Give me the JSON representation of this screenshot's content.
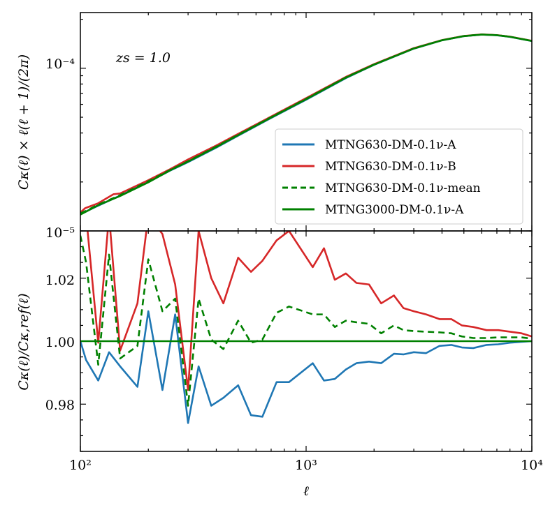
{
  "chart_data": [
    {
      "panel": "top",
      "type": "line",
      "xscale": "log",
      "yscale": "log",
      "xlim": [
        100,
        10000
      ],
      "ylim": [
        1e-05,
        0.00022
      ],
      "ylabel": "Cκ(ℓ) × ℓ(ℓ + 1)/(2π)",
      "annotation": "zs = 1.0",
      "ytick_labels": [
        {
          "value": 1e-05,
          "label": "10⁻⁵"
        },
        {
          "value": 0.0001,
          "label": "10⁻⁴"
        }
      ],
      "legend_position": "lower-right",
      "series": [
        {
          "name": "MTNG630-DM-0.1ν-A",
          "color": "#1f77b4",
          "style": "solid",
          "x": [
            100,
            120,
            150,
            200,
            250,
            300,
            400,
            500,
            700,
            1000,
            1500,
            2000,
            3000,
            4000,
            5000,
            6000,
            7000,
            8000,
            10000
          ],
          "y": [
            1.27e-05,
            1.43e-05,
            1.65e-05,
            2e-05,
            2.35e-05,
            2.65e-05,
            3.25e-05,
            3.85e-05,
            4.95e-05,
            6.4e-05,
            8.7e-05,
            0.000105,
            0.000132,
            0.0001485,
            0.0001575,
            0.000161,
            0.0001595,
            0.000156,
            0.000147
          ]
        },
        {
          "name": "MTNG630-DM-0.1ν-B",
          "color": "#d62728",
          "style": "solid",
          "x": [
            100,
            105,
            120,
            140,
            150,
            200,
            250,
            300,
            400,
            500,
            700,
            1000,
            1500,
            2000,
            3000,
            4000,
            5000,
            6000,
            7000,
            8000,
            10000
          ],
          "y": [
            1.3e-05,
            1.38e-05,
            1.48e-05,
            1.68e-05,
            1.7e-05,
            2.05e-05,
            2.4e-05,
            2.75e-05,
            3.35e-05,
            3.95e-05,
            5.05e-05,
            6.55e-05,
            8.85e-05,
            0.000106,
            0.000133,
            0.000149,
            0.000158,
            0.0001615,
            0.00016,
            0.0001565,
            0.0001475
          ]
        },
        {
          "name": "MTNG630-DM-0.1ν-mean",
          "color": "#008000",
          "style": "dashed",
          "x": [
            100,
            120,
            150,
            200,
            250,
            300,
            400,
            500,
            700,
            1000,
            1500,
            2000,
            3000,
            4000,
            5000,
            6000,
            7000,
            8000,
            10000
          ],
          "y": [
            1.28e-05,
            1.45e-05,
            1.66e-05,
            2.02e-05,
            2.37e-05,
            2.68e-05,
            3.3e-05,
            3.9e-05,
            5e-05,
            6.48e-05,
            8.78e-05,
            0.0001055,
            0.0001325,
            0.0001488,
            0.0001578,
            0.0001612,
            0.0001598,
            0.0001562,
            0.0001472
          ]
        },
        {
          "name": "MTNG3000-DM-0.1ν-A",
          "color": "#008000",
          "style": "solid",
          "x": [
            100,
            120,
            150,
            200,
            250,
            300,
            400,
            500,
            700,
            1000,
            1500,
            2000,
            3000,
            4000,
            5000,
            6000,
            7000,
            8000,
            10000
          ],
          "y": [
            1.26e-05,
            1.44e-05,
            1.64e-05,
            1.99e-05,
            2.36e-05,
            2.67e-05,
            3.28e-05,
            3.88e-05,
            4.98e-05,
            6.45e-05,
            8.75e-05,
            0.0001052,
            0.0001322,
            0.0001486,
            0.0001576,
            0.0001611,
            0.0001597,
            0.0001561,
            0.0001471
          ]
        }
      ]
    },
    {
      "panel": "bottom",
      "type": "line",
      "xscale": "log",
      "yscale": "linear",
      "xlim": [
        100,
        10000
      ],
      "ylim": [
        0.965,
        1.035
      ],
      "xlabel": "ℓ",
      "ylabel": "Cκ(ℓ)/Cκ,ref(ℓ)",
      "ytick_labels": [
        {
          "value": 0.98,
          "label": "0.98"
        },
        {
          "value": 1.0,
          "label": "1.00"
        },
        {
          "value": 1.02,
          "label": "1.02"
        }
      ],
      "xtick_labels": [
        {
          "value": 100,
          "label": "10²"
        },
        {
          "value": 1000,
          "label": "10³"
        },
        {
          "value": 10000,
          "label": "10⁴"
        }
      ],
      "series": [
        {
          "name": "MTNG630-DM-0.1ν-A",
          "color": "#1f77b4",
          "style": "solid",
          "x": [
            100,
            106,
            120,
            134,
            150,
            179,
            200,
            231,
            263,
            300,
            334,
            380,
            430,
            500,
            570,
            640,
            740,
            840,
            1070,
            1200,
            1340,
            1500,
            1670,
            1900,
            2150,
            2450,
            2700,
            3000,
            3400,
            3900,
            4400,
            4900,
            5500,
            6300,
            7100,
            8000,
            9000,
            10000
          ],
          "y": [
            1.0,
            0.994,
            0.9875,
            0.9965,
            0.992,
            0.9855,
            1.0095,
            0.9845,
            1.0085,
            0.974,
            0.992,
            0.9795,
            0.982,
            0.986,
            0.9765,
            0.976,
            0.987,
            0.987,
            0.993,
            0.9875,
            0.988,
            0.991,
            0.993,
            0.9935,
            0.993,
            0.996,
            0.9958,
            0.9965,
            0.9962,
            0.9985,
            0.9988,
            0.998,
            0.9978,
            0.9988,
            0.999,
            0.9995,
            0.9998,
            1.0
          ]
        },
        {
          "name": "MTNG630-DM-0.1ν-B",
          "color": "#d62728",
          "style": "solid",
          "x": [
            100,
            106,
            120,
            134,
            150,
            179,
            200,
            231,
            263,
            300,
            334,
            380,
            430,
            500,
            570,
            640,
            740,
            840,
            1070,
            1200,
            1340,
            1500,
            1670,
            1900,
            2150,
            2450,
            2700,
            3000,
            3400,
            3900,
            4400,
            4900,
            5500,
            6300,
            7100,
            8000,
            9000,
            10000
          ],
          "y": [
            1.04,
            1.04,
            0.9995,
            1.04,
            0.997,
            1.012,
            1.04,
            1.034,
            1.018,
            0.9845,
            1.035,
            1.02,
            1.012,
            1.0265,
            1.022,
            1.0255,
            1.032,
            1.035,
            1.0235,
            1.0295,
            1.0195,
            1.0215,
            1.0185,
            1.018,
            1.012,
            1.0145,
            1.0105,
            1.0095,
            1.0085,
            1.007,
            1.007,
            1.005,
            1.0045,
            1.0035,
            1.0035,
            1.003,
            1.0025,
            1.0015
          ]
        },
        {
          "name": "MTNG630-DM-0.1ν-mean",
          "color": "#008000",
          "style": "dashed",
          "x": [
            100,
            106,
            120,
            134,
            150,
            179,
            200,
            231,
            263,
            300,
            334,
            380,
            430,
            500,
            570,
            640,
            740,
            840,
            1070,
            1200,
            1340,
            1500,
            1670,
            1900,
            2150,
            2450,
            2700,
            3000,
            3400,
            3900,
            4400,
            4900,
            5500,
            6300,
            7100,
            8000,
            9000,
            10000
          ],
          "y": [
            1.0335,
            1.025,
            0.9925,
            1.0275,
            0.9945,
            0.9985,
            1.026,
            1.0095,
            1.0135,
            0.9795,
            1.0135,
            1.0005,
            0.9975,
            1.0065,
            0.9995,
            1.0005,
            1.009,
            1.011,
            1.0085,
            1.0085,
            1.0045,
            1.0065,
            1.006,
            1.0055,
            1.0025,
            1.005,
            1.0035,
            1.0032,
            1.003,
            1.0028,
            1.0025,
            1.0015,
            1.001,
            1.001,
            1.0012,
            1.0012,
            1.0012,
            1.0008
          ]
        },
        {
          "name": "MTNG3000-DM-0.1ν-A",
          "color": "#008000",
          "style": "solid",
          "x": [
            100,
            10000
          ],
          "y": [
            1.0,
            1.0
          ]
        }
      ]
    }
  ]
}
